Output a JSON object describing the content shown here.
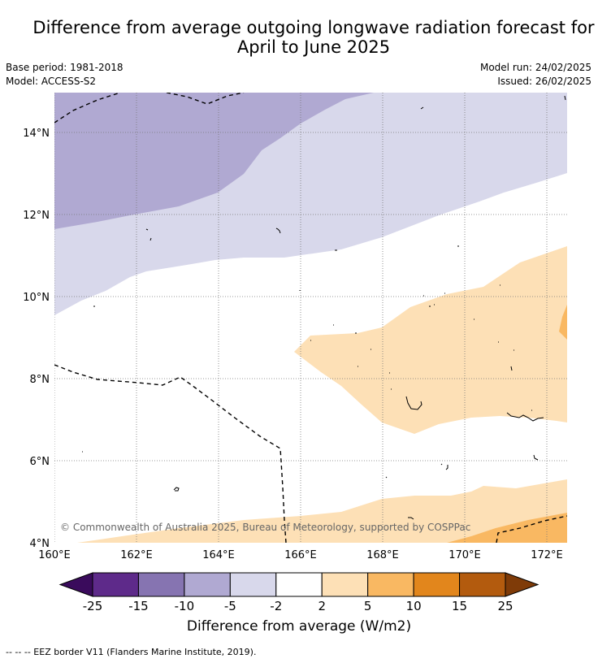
{
  "title_line1": "Difference from average outgoing longwave radiation forecast for",
  "title_line2": "April to June 2025",
  "base_period": "Base period: 1981-2018",
  "model": "Model: ACCESS-S2",
  "model_run": "Model run: 24/02/2025",
  "issued": "Issued: 26/02/2025",
  "map": {
    "lon_range": [
      160,
      172.5
    ],
    "lat_range": [
      4,
      15
    ],
    "lat_labels": [
      "14°N",
      "12°N",
      "10°N",
      "8°N",
      "6°N",
      "4°N"
    ],
    "lon_labels": [
      "160°E",
      "162°E",
      "164°E",
      "166°E",
      "168°E",
      "170°E",
      "172°E"
    ],
    "grid": "dotted",
    "copyright": "© Commonwealth of Australia 2025, Bureau of Meteorology, supported by COSPPac"
  },
  "colorbar": {
    "ticks": [
      "-25",
      "-15",
      "-10",
      "-5",
      "-2",
      "2",
      "5",
      "10",
      "15",
      "25"
    ],
    "colors": [
      "#3a0b5c",
      "#5e2a8a",
      "#8674b1",
      "#b0a9d2",
      "#d8d8eb",
      "#ffffff",
      "#fde0b6",
      "#f9b862",
      "#e2861c",
      "#b35b0e",
      "#7f3b08"
    ],
    "label": "Difference from average (W/m2)"
  },
  "legend_footnote": "--  --  -- EEZ border V11 (Flanders Marine Institute, 2019)."
}
